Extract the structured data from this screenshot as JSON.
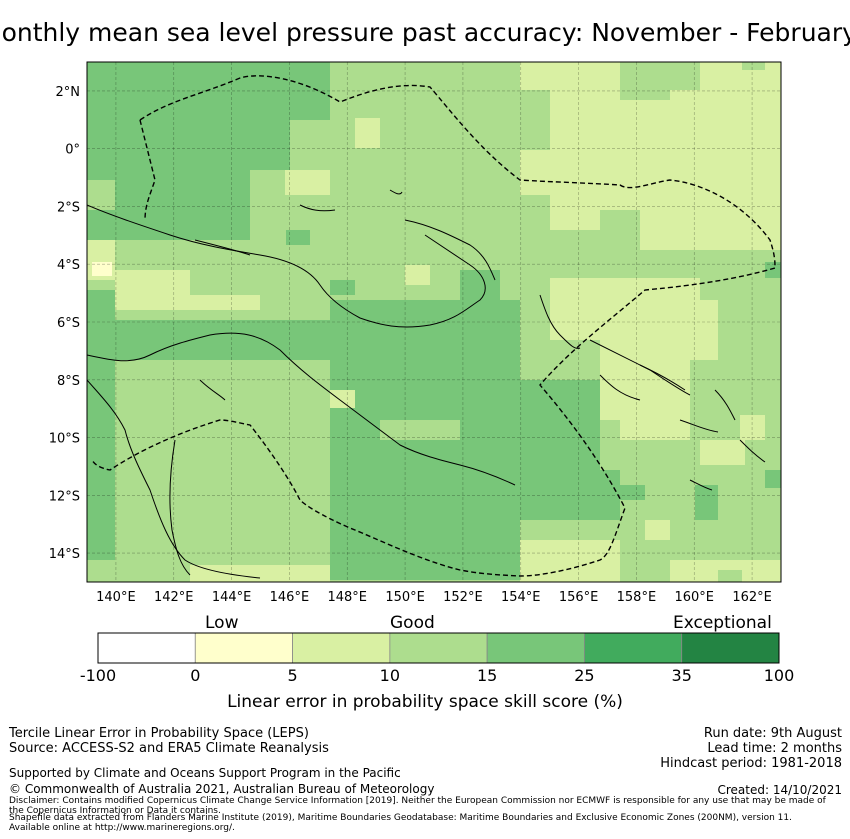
{
  "title": "Monthly mean sea level pressure past accuracy: November - February",
  "map": {
    "lon_ticks": [
      "140°E",
      "142°E",
      "144°E",
      "146°E",
      "148°E",
      "150°E",
      "152°E",
      "154°E",
      "156°E",
      "158°E",
      "160°E",
      "162°E"
    ],
    "lat_ticks": [
      "2°N",
      "0°",
      "2°S",
      "4°S",
      "6°S",
      "8°S",
      "10°S",
      "12°S",
      "14°S"
    ],
    "lon_range": [
      139,
      163
    ],
    "lat_range": [
      -15,
      3
    ]
  },
  "colorbar": {
    "category_labels": [
      "Low",
      "Good",
      "Exceptional"
    ],
    "ticks": [
      "-100",
      "0",
      "5",
      "10",
      "15",
      "25",
      "35",
      "100"
    ],
    "colors": [
      "#ffffff",
      "#ffffcc",
      "#d9f0a3",
      "#addd8e",
      "#78c679",
      "#41ab5d",
      "#238443"
    ],
    "label": "Linear error in probability space skill score (%)"
  },
  "footer": {
    "method": "Tercile Linear Error in Probability Space (LEPS)",
    "source": "Source: ACCESS-S2 and ERA5 Climate Reanalysis",
    "run_date": "Run date: 9th August",
    "lead_time": "Lead time: 2 months",
    "hindcast": "Hindcast period: 1981-2018",
    "support": "Supported by Climate and Oceans Support Program in the Pacific",
    "copyright": "© Commonwealth of Australia 2021, Australian Bureau of Meteorology",
    "created": "Created: 14/10/2021",
    "disclaimer_1": "Disclaimer: Contains modified Copernicus Climate Change Service Information [2019]. Neither the European Commission nor ECMWF is responsible for any use that may be made of",
    "disclaimer_2": "the Copernicus Information or Data it contains.",
    "shapefile_1": "Shapefile data extracted from Flanders Marine Institute (2019), Maritime Boundaries Geodatabase: Maritime Boundaries and Exclusive Economic Zones (200NM), version 11.",
    "shapefile_2": "Available online at http://www.marineregions.org/."
  }
}
